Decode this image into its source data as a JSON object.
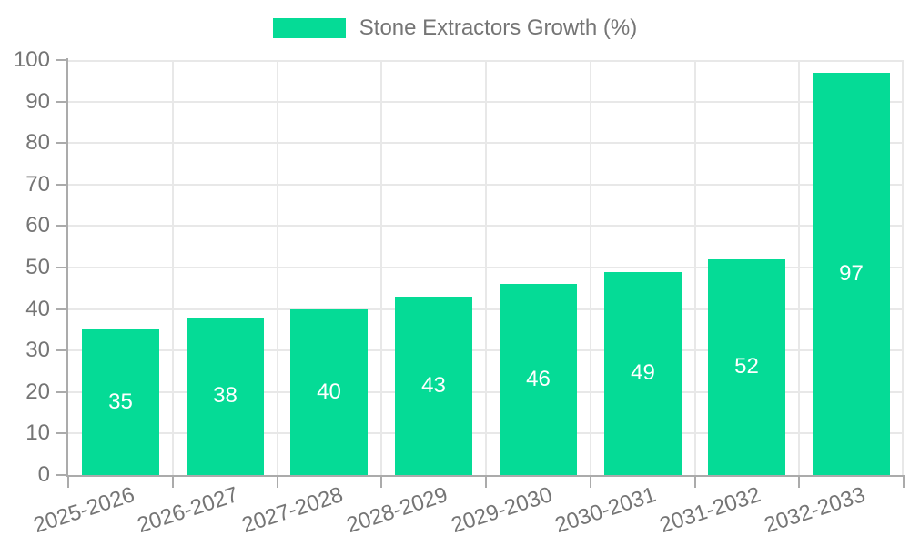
{
  "chart_data": {
    "type": "bar",
    "title": "",
    "categories": [
      "2025-2026",
      "2026-2027",
      "2027-2028",
      "2028-2029",
      "2029-2030",
      "2030-2031",
      "2031-2032",
      "2032-2033"
    ],
    "values": [
      35,
      38,
      40,
      43,
      46,
      49,
      52,
      97
    ],
    "legend": [
      "Stone Extractors Growth (%)"
    ],
    "legend_position": "top-center",
    "xlabel": "",
    "ylabel": "",
    "ylim": [
      0,
      100
    ],
    "yticks": [
      0,
      10,
      20,
      30,
      40,
      50,
      60,
      70,
      80,
      90,
      100
    ],
    "grid": true,
    "x_tick_rotation_deg": -18,
    "colors": {
      "bar": "#05DB96",
      "value_label": "#FFFFFF",
      "axis": "#ABABAB",
      "grid": "#E8E8E8",
      "tick_label": "#757575"
    }
  }
}
